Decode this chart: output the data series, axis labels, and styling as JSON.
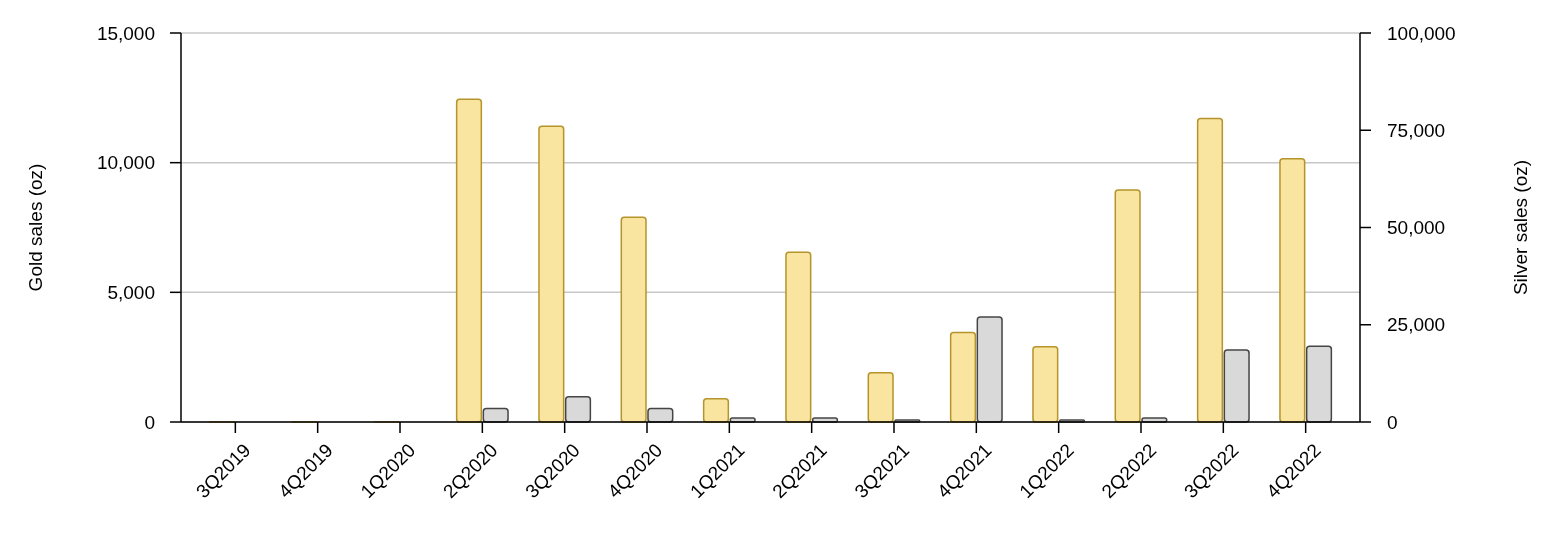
{
  "chart_data": {
    "type": "bar",
    "categories": [
      "3Q2019",
      "4Q2019",
      "1Q2020",
      "2Q2020",
      "3Q2020",
      "4Q2020",
      "1Q2021",
      "2Q2021",
      "3Q2021",
      "4Q2021",
      "1Q2022",
      "2Q2022",
      "3Q2022",
      "4Q2022"
    ],
    "ylabel": "Gold sales (oz)",
    "y2label": "Silver sales (oz)",
    "ylim": [
      0,
      15000
    ],
    "yticks": [
      0,
      {
        "value": 5000,
        "label": "5,000"
      },
      {
        "value": 10000,
        "label": "10,000"
      },
      {
        "value": 15000,
        "label": "15,000"
      }
    ],
    "y2lim": [
      0,
      100000
    ],
    "y2ticks": [
      0,
      {
        "value": 25000,
        "label": "25,000"
      },
      {
        "value": 50000,
        "label": "50,000"
      },
      {
        "value": 75000,
        "label": "75,000"
      },
      {
        "value": 100000,
        "label": "100,000"
      }
    ],
    "grid": "y",
    "series": [
      {
        "color": "#f9e4a0",
        "values": [
          0,
          0,
          0,
          12450,
          11400,
          7900,
          900,
          6550,
          1900,
          3450,
          2900,
          8950,
          11700,
          10150
        ]
      },
      {
        "color": "#d9d9d9",
        "axis": "y2",
        "values": [
          null,
          null,
          null,
          3500,
          6500,
          3500,
          1000,
          1000,
          500,
          27000,
          500,
          1000,
          18500,
          19500
        ]
      }
    ]
  }
}
